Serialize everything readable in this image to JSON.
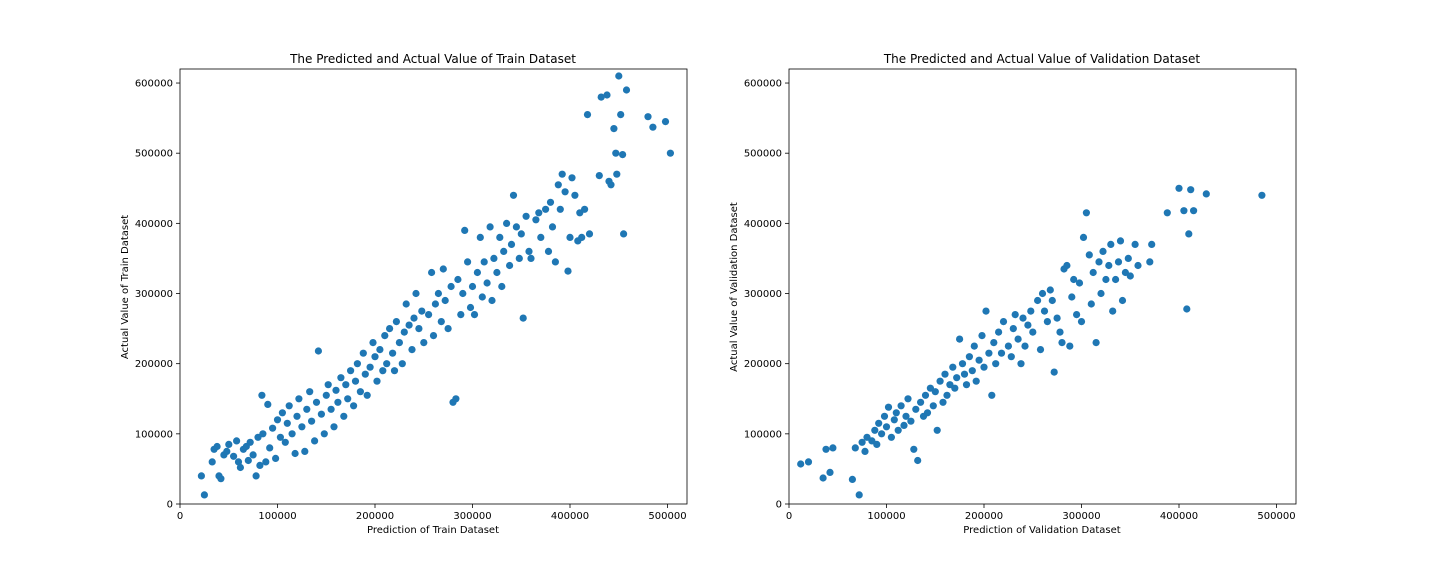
{
  "chart_data": [
    {
      "type": "scatter",
      "title": "The Predicted and Actual Value of Train Dataset",
      "xlabel": "Prediction of Train Dataset",
      "ylabel": "Actual Value of Train Dataset",
      "xlim": [
        0,
        520000
      ],
      "ylim": [
        0,
        620000
      ],
      "xticks": [
        0,
        100000,
        200000,
        300000,
        400000,
        500000
      ],
      "yticks": [
        0,
        100000,
        200000,
        300000,
        400000,
        500000,
        600000
      ],
      "grid": false,
      "color": "#1f77b4",
      "points": [
        [
          25000,
          13000
        ],
        [
          22000,
          40000
        ],
        [
          33000,
          60000
        ],
        [
          35000,
          78000
        ],
        [
          38000,
          82000
        ],
        [
          40000,
          40000
        ],
        [
          42000,
          36000
        ],
        [
          45000,
          70000
        ],
        [
          48000,
          75000
        ],
        [
          50000,
          85000
        ],
        [
          55000,
          68000
        ],
        [
          58000,
          90000
        ],
        [
          60000,
          60000
        ],
        [
          62000,
          52000
        ],
        [
          65000,
          78000
        ],
        [
          68000,
          82000
        ],
        [
          70000,
          62000
        ],
        [
          72000,
          88000
        ],
        [
          75000,
          70000
        ],
        [
          78000,
          40000
        ],
        [
          80000,
          95000
        ],
        [
          82000,
          55000
        ],
        [
          84000,
          155000
        ],
        [
          85000,
          100000
        ],
        [
          88000,
          60000
        ],
        [
          90000,
          142000
        ],
        [
          92000,
          80000
        ],
        [
          95000,
          108000
        ],
        [
          98000,
          65000
        ],
        [
          100000,
          120000
        ],
        [
          103000,
          95000
        ],
        [
          105000,
          130000
        ],
        [
          108000,
          88000
        ],
        [
          110000,
          115000
        ],
        [
          112000,
          140000
        ],
        [
          115000,
          100000
        ],
        [
          118000,
          72000
        ],
        [
          120000,
          125000
        ],
        [
          122000,
          150000
        ],
        [
          125000,
          110000
        ],
        [
          128000,
          75000
        ],
        [
          130000,
          135000
        ],
        [
          133000,
          160000
        ],
        [
          135000,
          118000
        ],
        [
          138000,
          90000
        ],
        [
          140000,
          145000
        ],
        [
          142000,
          218000
        ],
        [
          145000,
          128000
        ],
        [
          148000,
          100000
        ],
        [
          150000,
          155000
        ],
        [
          152000,
          170000
        ],
        [
          155000,
          135000
        ],
        [
          158000,
          110000
        ],
        [
          160000,
          162000
        ],
        [
          162000,
          145000
        ],
        [
          165000,
          180000
        ],
        [
          168000,
          125000
        ],
        [
          170000,
          170000
        ],
        [
          172000,
          150000
        ],
        [
          175000,
          190000
        ],
        [
          178000,
          140000
        ],
        [
          180000,
          175000
        ],
        [
          182000,
          200000
        ],
        [
          185000,
          160000
        ],
        [
          188000,
          215000
        ],
        [
          190000,
          185000
        ],
        [
          192000,
          155000
        ],
        [
          195000,
          195000
        ],
        [
          198000,
          230000
        ],
        [
          200000,
          210000
        ],
        [
          202000,
          175000
        ],
        [
          205000,
          220000
        ],
        [
          208000,
          190000
        ],
        [
          210000,
          240000
        ],
        [
          212000,
          200000
        ],
        [
          215000,
          250000
        ],
        [
          218000,
          215000
        ],
        [
          220000,
          190000
        ],
        [
          222000,
          260000
        ],
        [
          225000,
          230000
        ],
        [
          228000,
          200000
        ],
        [
          230000,
          245000
        ],
        [
          232000,
          285000
        ],
        [
          235000,
          255000
        ],
        [
          238000,
          220000
        ],
        [
          240000,
          265000
        ],
        [
          242000,
          300000
        ],
        [
          245000,
          250000
        ],
        [
          248000,
          275000
        ],
        [
          250000,
          230000
        ],
        [
          255000,
          270000
        ],
        [
          258000,
          330000
        ],
        [
          260000,
          240000
        ],
        [
          262000,
          285000
        ],
        [
          265000,
          300000
        ],
        [
          268000,
          260000
        ],
        [
          270000,
          335000
        ],
        [
          272000,
          290000
        ],
        [
          275000,
          250000
        ],
        [
          278000,
          310000
        ],
        [
          280000,
          145000
        ],
        [
          283000,
          150000
        ],
        [
          285000,
          320000
        ],
        [
          288000,
          270000
        ],
        [
          290000,
          300000
        ],
        [
          292000,
          390000
        ],
        [
          295000,
          345000
        ],
        [
          298000,
          280000
        ],
        [
          300000,
          310000
        ],
        [
          302000,
          270000
        ],
        [
          305000,
          330000
        ],
        [
          308000,
          380000
        ],
        [
          310000,
          295000
        ],
        [
          312000,
          345000
        ],
        [
          315000,
          315000
        ],
        [
          318000,
          395000
        ],
        [
          320000,
          290000
        ],
        [
          322000,
          350000
        ],
        [
          325000,
          330000
        ],
        [
          328000,
          380000
        ],
        [
          330000,
          310000
        ],
        [
          332000,
          360000
        ],
        [
          335000,
          400000
        ],
        [
          338000,
          340000
        ],
        [
          340000,
          370000
        ],
        [
          342000,
          440000
        ],
        [
          345000,
          395000
        ],
        [
          348000,
          350000
        ],
        [
          350000,
          385000
        ],
        [
          352000,
          265000
        ],
        [
          355000,
          410000
        ],
        [
          358000,
          360000
        ],
        [
          360000,
          350000
        ],
        [
          365000,
          405000
        ],
        [
          368000,
          415000
        ],
        [
          370000,
          380000
        ],
        [
          375000,
          420000
        ],
        [
          378000,
          360000
        ],
        [
          380000,
          430000
        ],
        [
          382000,
          395000
        ],
        [
          385000,
          345000
        ],
        [
          388000,
          455000
        ],
        [
          390000,
          420000
        ],
        [
          392000,
          470000
        ],
        [
          395000,
          445000
        ],
        [
          398000,
          332000
        ],
        [
          400000,
          380000
        ],
        [
          402000,
          465000
        ],
        [
          405000,
          440000
        ],
        [
          408000,
          375000
        ],
        [
          410000,
          415000
        ],
        [
          412000,
          380000
        ],
        [
          415000,
          420000
        ],
        [
          418000,
          555000
        ],
        [
          420000,
          385000
        ],
        [
          430000,
          468000
        ],
        [
          432000,
          580000
        ],
        [
          438000,
          583000
        ],
        [
          440000,
          460000
        ],
        [
          442000,
          455000
        ],
        [
          445000,
          535000
        ],
        [
          447000,
          500000
        ],
        [
          448000,
          470000
        ],
        [
          450000,
          610000
        ],
        [
          452000,
          555000
        ],
        [
          454000,
          498000
        ],
        [
          455000,
          385000
        ],
        [
          458000,
          590000
        ],
        [
          480000,
          552000
        ],
        [
          485000,
          537000
        ],
        [
          498000,
          545000
        ],
        [
          503000,
          500000
        ]
      ]
    },
    {
      "type": "scatter",
      "title": "The Predicted and Actual Value of Validation Dataset",
      "xlabel": "Prediction of Validation Dataset",
      "ylabel": "Actual Value of Validation Dataset",
      "xlim": [
        0,
        520000
      ],
      "ylim": [
        0,
        620000
      ],
      "xticks": [
        0,
        100000,
        200000,
        300000,
        400000,
        500000
      ],
      "yticks": [
        0,
        100000,
        200000,
        300000,
        400000,
        500000,
        600000
      ],
      "grid": false,
      "color": "#1f77b4",
      "points": [
        [
          12000,
          57000
        ],
        [
          20000,
          60000
        ],
        [
          35000,
          37000
        ],
        [
          38000,
          78000
        ],
        [
          42000,
          45000
        ],
        [
          45000,
          80000
        ],
        [
          65000,
          35000
        ],
        [
          68000,
          80000
        ],
        [
          72000,
          13000
        ],
        [
          75000,
          88000
        ],
        [
          78000,
          75000
        ],
        [
          80000,
          95000
        ],
        [
          85000,
          90000
        ],
        [
          88000,
          105000
        ],
        [
          90000,
          85000
        ],
        [
          92000,
          115000
        ],
        [
          95000,
          100000
        ],
        [
          98000,
          125000
        ],
        [
          100000,
          110000
        ],
        [
          102000,
          138000
        ],
        [
          105000,
          95000
        ],
        [
          108000,
          120000
        ],
        [
          110000,
          130000
        ],
        [
          112000,
          105000
        ],
        [
          115000,
          140000
        ],
        [
          118000,
          112000
        ],
        [
          120000,
          125000
        ],
        [
          122000,
          150000
        ],
        [
          125000,
          118000
        ],
        [
          128000,
          78000
        ],
        [
          130000,
          135000
        ],
        [
          132000,
          62000
        ],
        [
          135000,
          145000
        ],
        [
          138000,
          125000
        ],
        [
          140000,
          155000
        ],
        [
          142000,
          130000
        ],
        [
          145000,
          165000
        ],
        [
          148000,
          140000
        ],
        [
          150000,
          160000
        ],
        [
          152000,
          105000
        ],
        [
          155000,
          175000
        ],
        [
          158000,
          145000
        ],
        [
          160000,
          185000
        ],
        [
          162000,
          155000
        ],
        [
          165000,
          170000
        ],
        [
          168000,
          195000
        ],
        [
          170000,
          165000
        ],
        [
          172000,
          180000
        ],
        [
          175000,
          235000
        ],
        [
          178000,
          200000
        ],
        [
          180000,
          185000
        ],
        [
          182000,
          170000
        ],
        [
          185000,
          210000
        ],
        [
          188000,
          190000
        ],
        [
          190000,
          225000
        ],
        [
          192000,
          175000
        ],
        [
          195000,
          205000
        ],
        [
          198000,
          240000
        ],
        [
          200000,
          195000
        ],
        [
          202000,
          275000
        ],
        [
          205000,
          215000
        ],
        [
          208000,
          155000
        ],
        [
          210000,
          230000
        ],
        [
          212000,
          200000
        ],
        [
          215000,
          245000
        ],
        [
          218000,
          215000
        ],
        [
          220000,
          260000
        ],
        [
          225000,
          225000
        ],
        [
          228000,
          210000
        ],
        [
          230000,
          250000
        ],
        [
          232000,
          270000
        ],
        [
          235000,
          235000
        ],
        [
          238000,
          200000
        ],
        [
          240000,
          265000
        ],
        [
          242000,
          225000
        ],
        [
          245000,
          255000
        ],
        [
          248000,
          275000
        ],
        [
          250000,
          245000
        ],
        [
          255000,
          290000
        ],
        [
          258000,
          220000
        ],
        [
          260000,
          300000
        ],
        [
          262000,
          275000
        ],
        [
          265000,
          260000
        ],
        [
          268000,
          305000
        ],
        [
          270000,
          290000
        ],
        [
          272000,
          188000
        ],
        [
          275000,
          265000
        ],
        [
          278000,
          245000
        ],
        [
          280000,
          230000
        ],
        [
          282000,
          335000
        ],
        [
          285000,
          340000
        ],
        [
          288000,
          225000
        ],
        [
          290000,
          295000
        ],
        [
          292000,
          320000
        ],
        [
          295000,
          270000
        ],
        [
          298000,
          315000
        ],
        [
          300000,
          260000
        ],
        [
          302000,
          380000
        ],
        [
          305000,
          415000
        ],
        [
          308000,
          355000
        ],
        [
          310000,
          285000
        ],
        [
          312000,
          330000
        ],
        [
          315000,
          230000
        ],
        [
          318000,
          345000
        ],
        [
          320000,
          300000
        ],
        [
          322000,
          360000
        ],
        [
          325000,
          320000
        ],
        [
          328000,
          340000
        ],
        [
          330000,
          370000
        ],
        [
          332000,
          275000
        ],
        [
          335000,
          320000
        ],
        [
          338000,
          345000
        ],
        [
          340000,
          375000
        ],
        [
          342000,
          290000
        ],
        [
          345000,
          330000
        ],
        [
          348000,
          350000
        ],
        [
          350000,
          325000
        ],
        [
          355000,
          370000
        ],
        [
          358000,
          340000
        ],
        [
          370000,
          345000
        ],
        [
          372000,
          370000
        ],
        [
          388000,
          415000
        ],
        [
          400000,
          450000
        ],
        [
          405000,
          418000
        ],
        [
          408000,
          278000
        ],
        [
          410000,
          385000
        ],
        [
          412000,
          448000
        ],
        [
          415000,
          418000
        ],
        [
          428000,
          442000
        ],
        [
          485000,
          440000
        ]
      ]
    }
  ]
}
